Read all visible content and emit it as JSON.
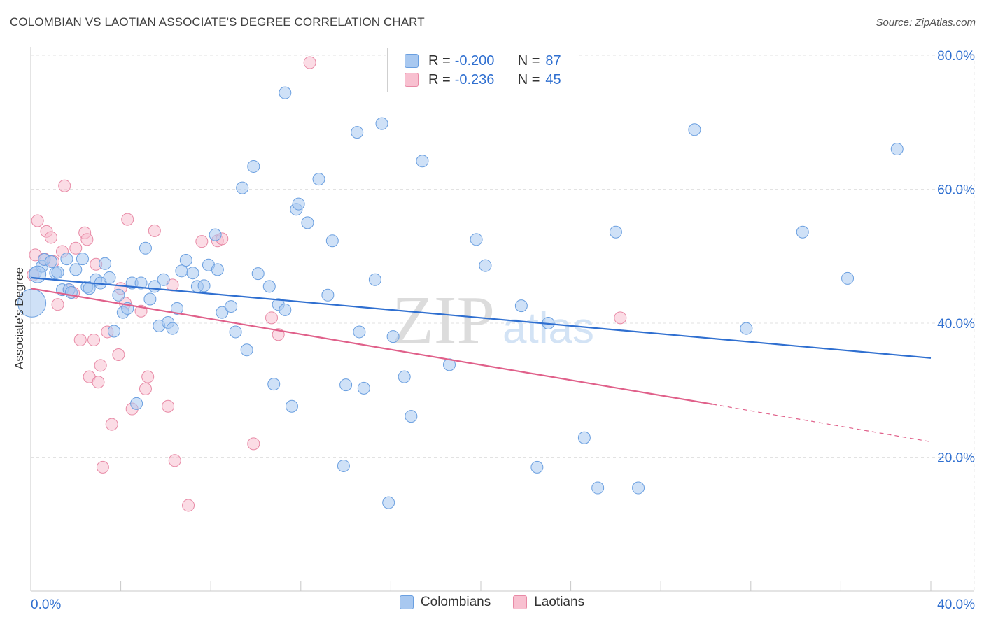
{
  "title": "COLOMBIAN VS LAOTIAN ASSOCIATE'S DEGREE CORRELATION CHART",
  "source": "Source: ZipAtlas.com",
  "watermark": {
    "zip": "ZIP",
    "atlas": "atlas"
  },
  "legend": {
    "rows": [
      {
        "r_label": "R =",
        "r_value": "-0.200",
        "n_label": "N =",
        "n_value": "87",
        "color": "#a8c8f0",
        "border": "#6a9fe0"
      },
      {
        "r_label": "R =",
        "r_value": "-0.236",
        "n_label": "N =",
        "n_value": "45",
        "color": "#f8c0d0",
        "border": "#e88aa6"
      }
    ]
  },
  "bottom_legend": [
    {
      "label": "Colombians",
      "color": "#a8c8f0",
      "border": "#6a9fe0"
    },
    {
      "label": "Laotians",
      "color": "#f8c0d0",
      "border": "#e88aa6"
    }
  ],
  "chart_data": {
    "type": "scatter",
    "title": "COLOMBIAN VS LAOTIAN ASSOCIATE'S DEGREE CORRELATION CHART",
    "xlabel": "",
    "ylabel": "Associate's Degree",
    "xlim": [
      0,
      40
    ],
    "ylim": [
      0,
      80
    ],
    "x_tick_labels": [
      "0.0%",
      "40.0%"
    ],
    "y_ticks": [
      20,
      40,
      60,
      80
    ],
    "y_tick_labels": [
      "20.0%",
      "40.0%",
      "60.0%",
      "80.0%"
    ],
    "grid": true,
    "series": [
      {
        "name": "Colombians",
        "color": "#6a9fe0",
        "fill": "#a8c8f0",
        "trend": {
          "x0": 0,
          "y0": 46.8,
          "x1": 40,
          "y1": 34.8
        },
        "points": [
          [
            0.2,
            47.5
          ],
          [
            0.5,
            48.5
          ],
          [
            0.6,
            49.5
          ],
          [
            0.9,
            49.2
          ],
          [
            1.1,
            47.5
          ],
          [
            1.2,
            47.6
          ],
          [
            1.4,
            45.0
          ],
          [
            1.6,
            49.6
          ],
          [
            1.7,
            45.0
          ],
          [
            1.8,
            44.6
          ],
          [
            2.0,
            48.0
          ],
          [
            2.3,
            49.6
          ],
          [
            2.5,
            45.4
          ],
          [
            2.6,
            45.2
          ],
          [
            2.9,
            46.5
          ],
          [
            3.1,
            46.0
          ],
          [
            3.3,
            48.9
          ],
          [
            3.5,
            46.8
          ],
          [
            3.7,
            38.8
          ],
          [
            3.9,
            44.2
          ],
          [
            4.1,
            41.6
          ],
          [
            4.3,
            42.2
          ],
          [
            4.5,
            46.0
          ],
          [
            4.7,
            28.0
          ],
          [
            4.9,
            46.0
          ],
          [
            5.1,
            51.2
          ],
          [
            5.3,
            43.6
          ],
          [
            5.5,
            45.5
          ],
          [
            5.7,
            39.6
          ],
          [
            5.9,
            46.5
          ],
          [
            6.1,
            40.1
          ],
          [
            6.3,
            39.2
          ],
          [
            6.5,
            42.2
          ],
          [
            6.7,
            47.8
          ],
          [
            6.9,
            49.4
          ],
          [
            7.2,
            47.5
          ],
          [
            7.4,
            45.5
          ],
          [
            7.7,
            45.6
          ],
          [
            7.9,
            48.7
          ],
          [
            8.2,
            53.2
          ],
          [
            8.3,
            48.0
          ],
          [
            8.5,
            41.6
          ],
          [
            8.9,
            42.5
          ],
          [
            9.1,
            38.7
          ],
          [
            9.4,
            60.2
          ],
          [
            9.6,
            36.0
          ],
          [
            9.9,
            63.4
          ],
          [
            10.1,
            47.4
          ],
          [
            10.6,
            45.5
          ],
          [
            10.8,
            30.9
          ],
          [
            11.0,
            42.8
          ],
          [
            11.3,
            42.0
          ],
          [
            11.3,
            74.4
          ],
          [
            11.6,
            27.6
          ],
          [
            11.8,
            57.0
          ],
          [
            11.9,
            57.8
          ],
          [
            12.3,
            55.0
          ],
          [
            12.8,
            61.5
          ],
          [
            13.2,
            44.2
          ],
          [
            13.4,
            52.3
          ],
          [
            13.9,
            18.7
          ],
          [
            14.0,
            30.8
          ],
          [
            14.5,
            68.5
          ],
          [
            14.6,
            38.7
          ],
          [
            14.8,
            30.3
          ],
          [
            15.3,
            46.5
          ],
          [
            15.6,
            69.8
          ],
          [
            15.9,
            13.2
          ],
          [
            16.1,
            38.0
          ],
          [
            16.6,
            32.0
          ],
          [
            16.9,
            26.1
          ],
          [
            17.4,
            64.2
          ],
          [
            18.6,
            33.8
          ],
          [
            19.8,
            52.5
          ],
          [
            20.2,
            48.6
          ],
          [
            21.8,
            42.6
          ],
          [
            22.5,
            18.5
          ],
          [
            23.0,
            40.0
          ],
          [
            24.6,
            22.9
          ],
          [
            25.2,
            15.4
          ],
          [
            26.0,
            53.6
          ],
          [
            27.0,
            15.4
          ],
          [
            29.5,
            68.9
          ],
          [
            31.8,
            39.2
          ],
          [
            34.3,
            53.6
          ],
          [
            36.3,
            46.7
          ],
          [
            38.5,
            66.0
          ]
        ]
      },
      {
        "name": "Laotians",
        "color": "#e88aa6",
        "fill": "#f8c0d0",
        "trend": {
          "x0": 0,
          "y0": 45.2,
          "x1": 30.3,
          "y1": 27.9,
          "dash_x1": 40,
          "dash_y1": 22.3
        },
        "points": [
          [
            0.1,
            47.2
          ],
          [
            0.2,
            50.2
          ],
          [
            0.3,
            55.3
          ],
          [
            0.6,
            49.6
          ],
          [
            0.7,
            53.7
          ],
          [
            0.9,
            52.8
          ],
          [
            1.0,
            49.2
          ],
          [
            1.2,
            42.8
          ],
          [
            1.4,
            50.7
          ],
          [
            1.5,
            60.5
          ],
          [
            1.7,
            45.0
          ],
          [
            1.9,
            44.5
          ],
          [
            2.0,
            51.2
          ],
          [
            2.2,
            37.5
          ],
          [
            2.4,
            53.5
          ],
          [
            2.5,
            52.5
          ],
          [
            2.6,
            32.0
          ],
          [
            2.8,
            37.5
          ],
          [
            2.9,
            48.8
          ],
          [
            3.0,
            31.2
          ],
          [
            3.1,
            33.7
          ],
          [
            3.2,
            18.5
          ],
          [
            3.4,
            38.7
          ],
          [
            3.6,
            24.9
          ],
          [
            3.9,
            35.3
          ],
          [
            4.0,
            45.2
          ],
          [
            4.2,
            43.0
          ],
          [
            4.3,
            55.5
          ],
          [
            4.5,
            27.2
          ],
          [
            4.9,
            41.8
          ],
          [
            5.1,
            30.2
          ],
          [
            5.2,
            32.0
          ],
          [
            5.5,
            53.8
          ],
          [
            6.1,
            27.6
          ],
          [
            6.3,
            45.7
          ],
          [
            6.4,
            19.5
          ],
          [
            7.0,
            12.8
          ],
          [
            7.6,
            52.2
          ],
          [
            8.3,
            52.3
          ],
          [
            8.5,
            52.6
          ],
          [
            9.9,
            22.0
          ],
          [
            10.7,
            40.8
          ],
          [
            11.0,
            38.3
          ],
          [
            12.4,
            78.9
          ],
          [
            26.2,
            40.8
          ]
        ]
      }
    ]
  }
}
